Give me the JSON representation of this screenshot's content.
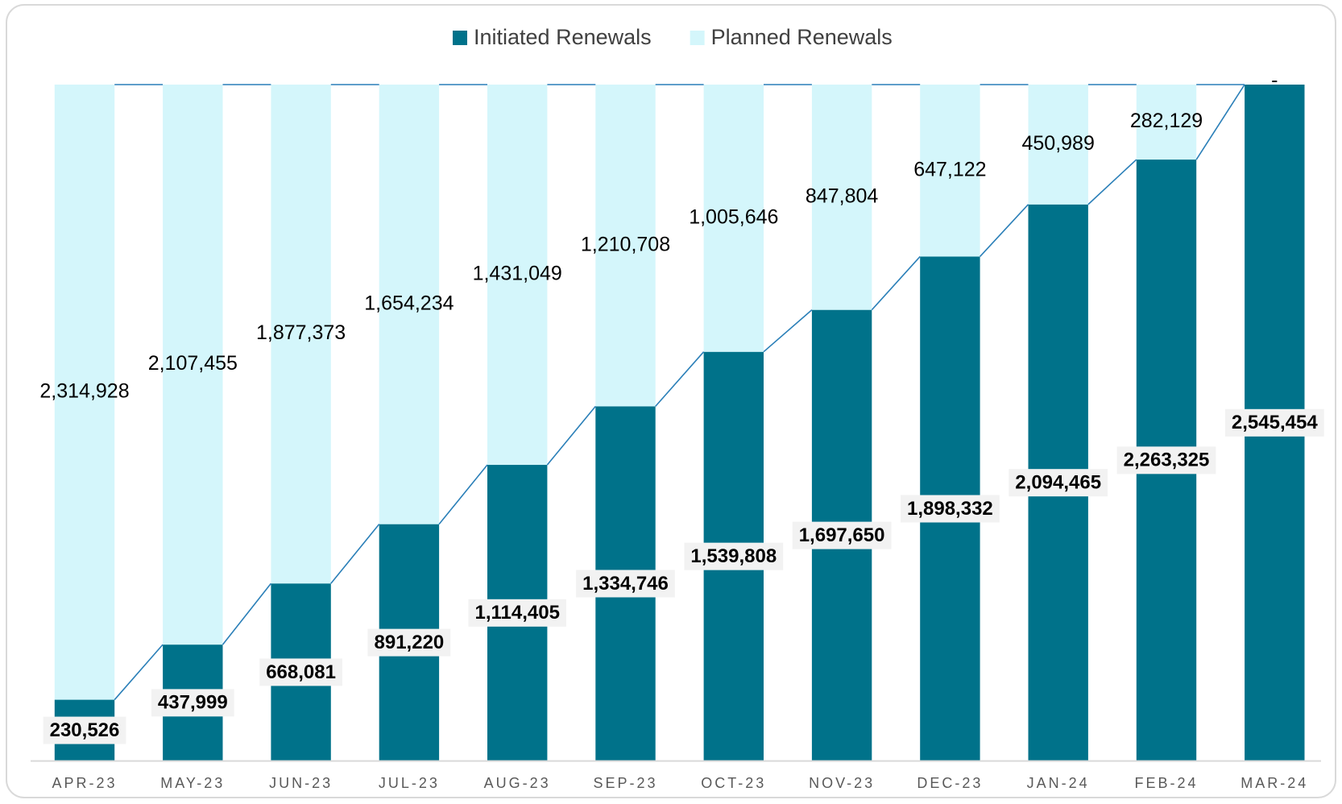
{
  "chart_data": {
    "type": "stacked_bar",
    "categories": [
      "APR-23",
      "MAY-23",
      "JUN-23",
      "JUL-23",
      "AUG-23",
      "SEP-23",
      "OCT-23",
      "NOV-23",
      "DEC-23",
      "JAN-24",
      "FEB-24",
      "MAR-24"
    ],
    "series": [
      {
        "name": "Initiated Renewals",
        "color": "#00728a",
        "values": [
          230526,
          437999,
          668081,
          891220,
          1114405,
          1334746,
          1539808,
          1697650,
          1898332,
          2094465,
          2263325,
          2545454
        ],
        "value_labels": [
          "230,526",
          "437,999",
          "668,081",
          "891,220",
          "1,114,405",
          "1,334,746",
          "1,539,808",
          "1,697,650",
          "1,898,332",
          "2,094,465",
          "2,263,325",
          "2,545,454"
        ]
      },
      {
        "name": "Planned Renewals",
        "color": "#d4f6fb",
        "values": [
          2314928,
          2107455,
          1877373,
          1654234,
          1431049,
          1210708,
          1005646,
          847804,
          647122,
          450989,
          282129,
          0
        ],
        "value_labels": [
          "2,314,928",
          "2,107,455",
          "1,877,373",
          "1,654,234",
          "1,431,049",
          "1,210,708",
          "1,005,646",
          "847,804",
          "647,122",
          "450,989",
          "282,129",
          "-"
        ]
      }
    ],
    "ylim": [
      0,
      2545454
    ],
    "legend": "top"
  }
}
